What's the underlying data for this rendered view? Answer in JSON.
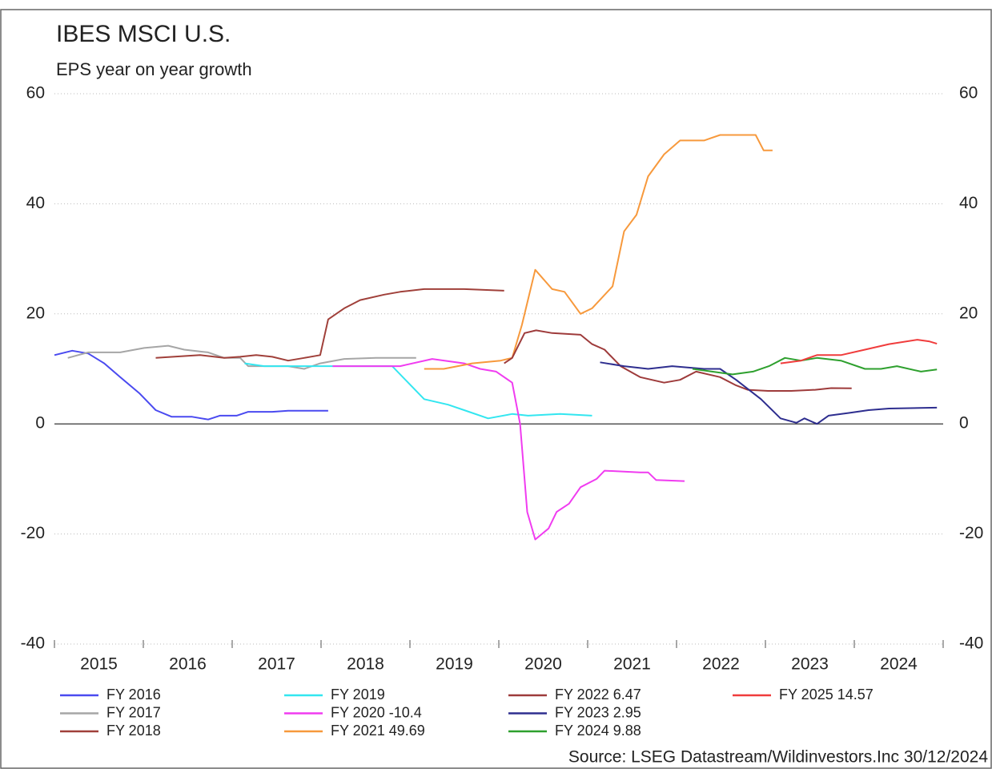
{
  "chart_data": {
    "type": "line",
    "title": "IBES MSCI U.S.",
    "subtitle": "EPS year on year growth",
    "source": "Source: LSEG Datastream/Wildinvestors.Inc 30/12/2024",
    "xlim": [
      2015,
      2025
    ],
    "xticks": [
      2015,
      2016,
      2017,
      2018,
      2019,
      2020,
      2021,
      2022,
      2023,
      2024
    ],
    "ylim": [
      -40,
      60
    ],
    "yticks": [
      -40,
      -20,
      0,
      20,
      40,
      60
    ],
    "grid": true,
    "legend": "bottom",
    "series": [
      {
        "name": "FY 2016",
        "color": "#4a4af0",
        "x": [
          2015.0,
          2015.2,
          2015.38,
          2015.56,
          2015.74,
          2015.96,
          2016.14,
          2016.32,
          2016.55,
          2016.73,
          2016.86,
          2017.05,
          2017.18,
          2017.45,
          2017.63,
          2018.08
        ],
        "values": [
          12.5,
          13.3,
          12.8,
          11,
          8.5,
          5.5,
          2.5,
          1.3,
          1.3,
          0.8,
          1.5,
          1.5,
          2.2,
          2.2,
          2.4,
          2.4
        ]
      },
      {
        "name": "FY 2017",
        "color": "#a6a6a6",
        "x": [
          2015.15,
          2015.38,
          2015.74,
          2016.01,
          2016.28,
          2016.46,
          2016.73,
          2016.91,
          2017.09,
          2017.18,
          2017.36,
          2017.63,
          2017.81,
          2017.99,
          2018.26,
          2018.62,
          2019.07
        ],
        "values": [
          12,
          13,
          13,
          13.8,
          14.2,
          13.5,
          13,
          12,
          12,
          10.5,
          10.5,
          10.5,
          10,
          11,
          11.8,
          12,
          12
        ]
      },
      {
        "name": "FY 2018",
        "color": "#a0403a",
        "x": [
          2016.14,
          2016.64,
          2016.91,
          2017.09,
          2017.27,
          2017.45,
          2017.63,
          2017.81,
          2017.99,
          2018.08,
          2018.26,
          2018.44,
          2018.71,
          2018.89,
          2019.16,
          2019.61,
          2020.06
        ],
        "values": [
          12,
          12.5,
          12,
          12.2,
          12.5,
          12.2,
          11.5,
          12,
          12.5,
          19,
          21,
          22.5,
          23.5,
          24,
          24.5,
          24.5,
          24.2
        ]
      },
      {
        "name": "FY 2019",
        "color": "#33e6f0",
        "x": [
          2017.14,
          2017.36,
          2017.63,
          2017.99,
          2018.35,
          2018.8,
          2018.98,
          2019.16,
          2019.43,
          2019.61,
          2019.88,
          2020.15,
          2020.33,
          2020.69,
          2021.05
        ],
        "values": [
          11,
          10.5,
          10.5,
          10.5,
          10.5,
          10.5,
          7.5,
          4.5,
          3.5,
          2.5,
          1,
          1.8,
          1.5,
          1.8,
          1.5
        ]
      },
      {
        "name": "FY 2020 -10.4",
        "color": "#f03cf0",
        "x": [
          2018.13,
          2018.44,
          2018.89,
          2019.25,
          2019.61,
          2019.79,
          2019.97,
          2020.15,
          2020.24,
          2020.32,
          2020.41,
          2020.56,
          2020.65,
          2020.79,
          2020.92,
          2021.1,
          2021.19,
          2021.59,
          2021.68,
          2021.77,
          2022.09
        ],
        "values": [
          10.5,
          10.5,
          10.5,
          11.8,
          11,
          10,
          9.5,
          7.5,
          0,
          -16,
          -21,
          -19,
          -16,
          -14.5,
          -11.5,
          -10,
          -8.5,
          -8.8,
          -8.8,
          -10.2,
          -10.4
        ]
      },
      {
        "name": "FY 2021 49.69",
        "color": "#f7993c",
        "x": [
          2019.16,
          2019.38,
          2019.7,
          2020.02,
          2020.15,
          2020.26,
          2020.41,
          2020.6,
          2020.74,
          2020.92,
          2021.05,
          2021.28,
          2021.41,
          2021.55,
          2021.68,
          2021.86,
          2022.04,
          2022.31,
          2022.49,
          2022.67,
          2022.89,
          2022.98,
          2023.08
        ],
        "values": [
          10,
          10,
          11,
          11.5,
          12,
          18,
          28,
          24.5,
          24,
          20,
          21,
          25,
          35,
          38,
          45,
          49,
          51.5,
          51.5,
          52.5,
          52.5,
          52.5,
          49.7,
          49.69
        ]
      },
      {
        "name": "FY 2022 6.47",
        "color": "#9e3b3b",
        "x": [
          2020.06,
          2020.15,
          2020.29,
          2020.42,
          2020.6,
          2020.92,
          2021.05,
          2021.19,
          2021.37,
          2021.59,
          2021.86,
          2022.04,
          2022.22,
          2022.49,
          2022.67,
          2022.8,
          2023.03,
          2023.29,
          2023.56,
          2023.74,
          2023.97
        ],
        "values": [
          11,
          12,
          16.5,
          17,
          16.5,
          16.2,
          14.5,
          13.5,
          10.5,
          8.5,
          7.5,
          8,
          9.5,
          8.5,
          7,
          6.2,
          6,
          6,
          6.2,
          6.5,
          6.47
        ]
      },
      {
        "name": "FY 2023 2.95",
        "color": "#2e2e8f",
        "x": [
          2021.14,
          2021.41,
          2021.68,
          2021.95,
          2022.31,
          2022.49,
          2022.67,
          2022.95,
          2023.17,
          2023.35,
          2023.44,
          2023.58,
          2023.71,
          2023.94,
          2024.16,
          2024.39,
          2024.93
        ],
        "values": [
          11.2,
          10.5,
          10,
          10.5,
          10,
          10,
          8,
          4.5,
          1,
          0.2,
          1,
          0,
          1.5,
          2,
          2.5,
          2.8,
          2.95
        ]
      },
      {
        "name": "FY 2024 9.88",
        "color": "#2ea02e",
        "x": [
          2022.18,
          2022.4,
          2022.63,
          2022.86,
          2023.04,
          2023.22,
          2023.4,
          2023.58,
          2023.85,
          2024.12,
          2024.3,
          2024.48,
          2024.75,
          2024.93
        ],
        "values": [
          10,
          9.5,
          9,
          9.5,
          10.5,
          12,
          11.5,
          12,
          11.5,
          10,
          10,
          10.5,
          9.5,
          9.88
        ]
      },
      {
        "name": "FY 2025 14.57",
        "color": "#f03c3c",
        "x": [
          2023.17,
          2023.4,
          2023.58,
          2023.85,
          2024.12,
          2024.39,
          2024.71,
          2024.84,
          2024.93
        ],
        "values": [
          11,
          11.5,
          12.5,
          12.5,
          13.5,
          14.5,
          15.3,
          15,
          14.57
        ]
      }
    ]
  }
}
